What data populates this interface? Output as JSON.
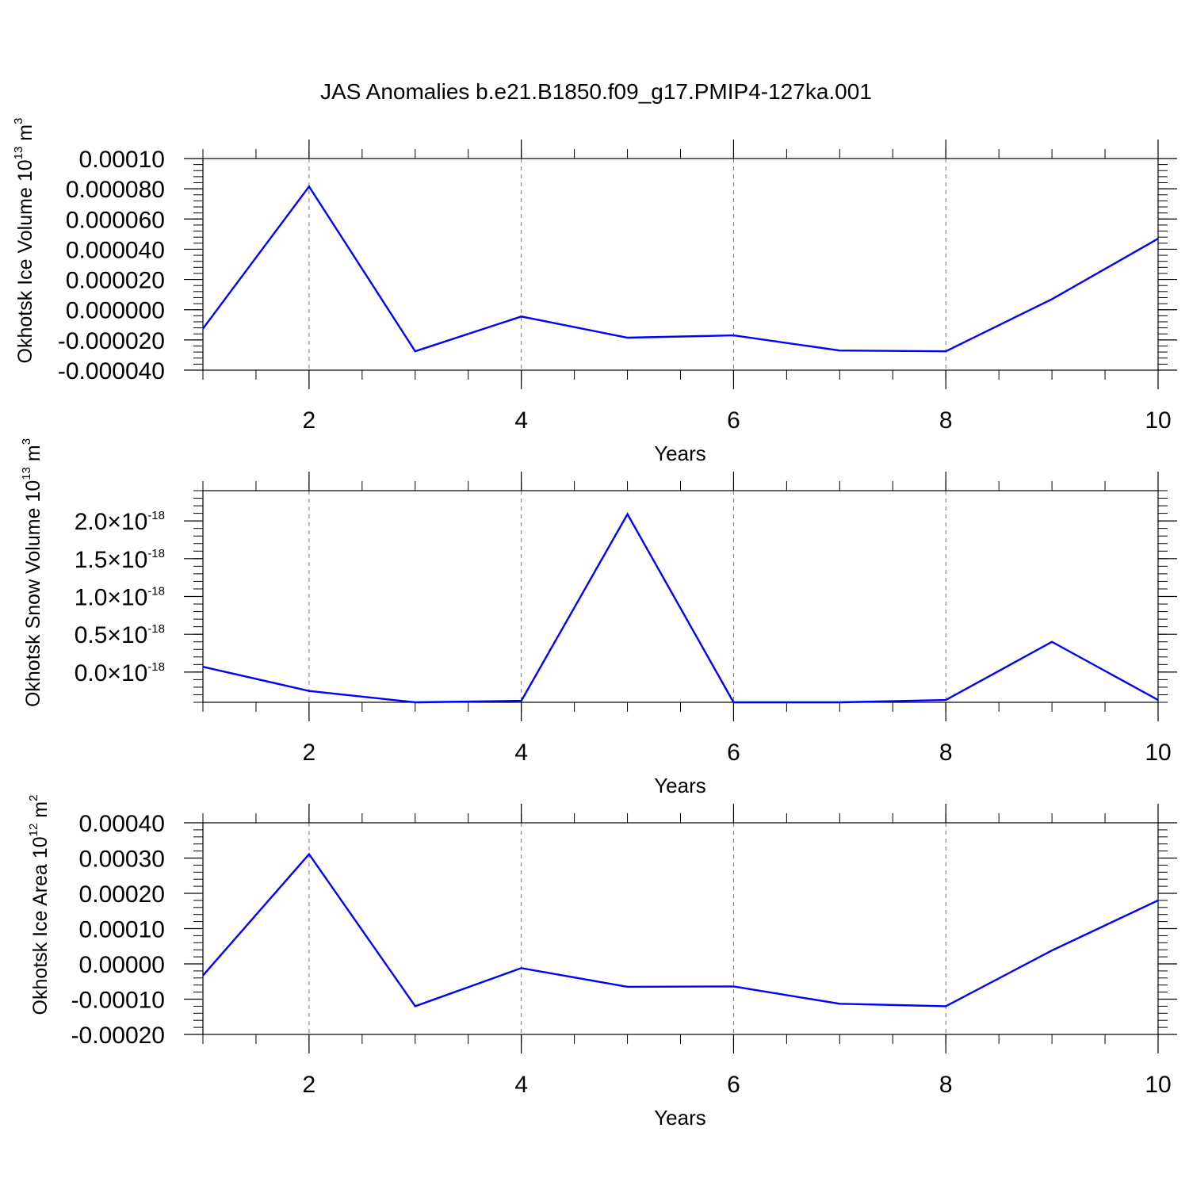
{
  "title": "JAS Anomalies b.e21.B1850.f09_g17.PMIP4-127ka.001",
  "chart_data": [
    {
      "type": "line",
      "xlabel": "Years",
      "ylabel": "Okhotsk Ice Volume 10",
      "ylabel_exp": "13",
      "ylabel_unit": " m",
      "ylabel_unit_exp": "3",
      "xlim": [
        1,
        10
      ],
      "ylim": [
        -4e-05,
        0.0001
      ],
      "x_ticks": [
        2,
        4,
        6,
        8,
        10
      ],
      "x_tick_labels": [
        "2",
        "4",
        "6",
        "8",
        "10"
      ],
      "y_ticks": [
        0.0001,
        8e-05,
        6e-05,
        4e-05,
        2e-05,
        0,
        -2e-05,
        -4e-05
      ],
      "y_tick_labels": [
        "0.00010",
        "0.000080",
        "0.000060",
        "0.000040",
        "0.000020",
        "0.000000",
        "-0.000020",
        "-0.000040"
      ],
      "grid": "vertical dashed",
      "line_color": "#0000ff",
      "series": [
        {
          "x": [
            1,
            2,
            3,
            4,
            5,
            6,
            7,
            8,
            9,
            10
          ],
          "values": [
            -1.25e-05,
            8.15e-05,
            -2.75e-05,
            -4.5e-06,
            -1.85e-05,
            -1.7e-05,
            -2.7e-05,
            -2.75e-05,
            7e-06,
            4.7e-05
          ]
        }
      ]
    },
    {
      "type": "line",
      "xlabel": "Years",
      "ylabel": "Okhotsk Snow Volume 10",
      "ylabel_exp": "13",
      "ylabel_unit": " m",
      "ylabel_unit_exp": "3",
      "xlim": [
        1,
        10
      ],
      "ylim": [
        -0.4,
        2.4
      ],
      "y_scale_note": "values in units of 10^-18",
      "x_ticks": [
        2,
        4,
        6,
        8,
        10
      ],
      "x_tick_labels": [
        "2",
        "4",
        "6",
        "8",
        "10"
      ],
      "y_ticks": [
        2.0,
        1.5,
        1.0,
        0.5,
        0.0
      ],
      "y_tick_labels": [
        "2.0",
        "1.5",
        "1.0",
        "0.5",
        "0.0"
      ],
      "y_tick_suffix": "10",
      "y_tick_suffix_exp": "-18",
      "grid": "vertical dashed",
      "line_color": "#0000ff",
      "series": [
        {
          "x": [
            1,
            2,
            3,
            4,
            5,
            6,
            7,
            8,
            9,
            10
          ],
          "values": [
            0.07,
            -0.25,
            -0.4,
            -0.38,
            2.09,
            -0.4,
            -0.4,
            -0.37,
            0.4,
            -0.37
          ]
        }
      ]
    },
    {
      "type": "line",
      "xlabel": "Years",
      "ylabel": "Okhotsk Ice Area 10",
      "ylabel_exp": "12",
      "ylabel_unit": " m",
      "ylabel_unit_exp": "2",
      "xlim": [
        1,
        10
      ],
      "ylim": [
        -0.0002,
        0.0004
      ],
      "x_ticks": [
        2,
        4,
        6,
        8,
        10
      ],
      "x_tick_labels": [
        "2",
        "4",
        "6",
        "8",
        "10"
      ],
      "y_ticks": [
        0.0004,
        0.0003,
        0.0002,
        0.0001,
        0,
        -0.0001,
        -0.0002
      ],
      "y_tick_labels": [
        "0.00040",
        "0.00030",
        "0.00020",
        "0.00010",
        "0.00000",
        "-0.00010",
        "-0.00020"
      ],
      "grid": "vertical dashed",
      "line_color": "#0000ff",
      "series": [
        {
          "x": [
            1,
            2,
            3,
            4,
            5,
            6,
            7,
            8,
            9,
            10
          ],
          "values": [
            -3.3e-05,
            0.000311,
            -0.00012,
            -1.2e-05,
            -6.5e-05,
            -6.4e-05,
            -0.000113,
            -0.00012,
            3.8e-05,
            0.00018
          ]
        }
      ]
    }
  ]
}
